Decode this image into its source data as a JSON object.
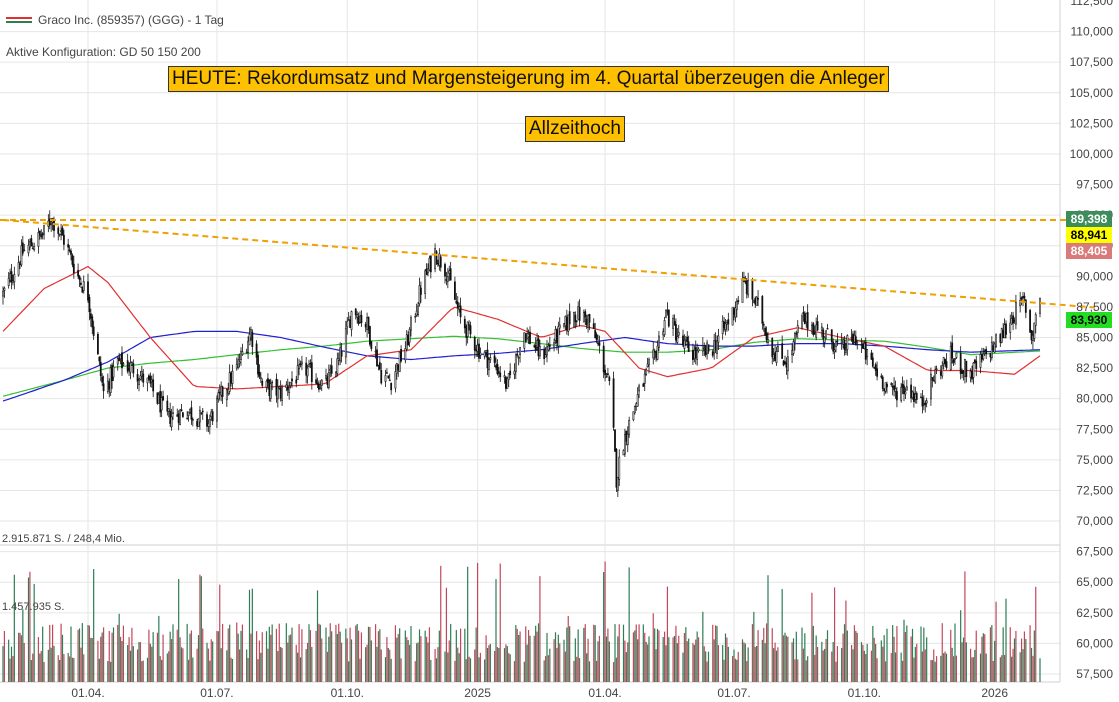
{
  "header": {
    "title": "Graco Inc. (859357) (GGG) - 1 Tag",
    "config": "Aktive Konfiguration: GD 50 150 200"
  },
  "annotations": {
    "headline": "HEUTE: Rekordumsatz und Margensteigerung im 4. Quartal überzeugen die Anleger",
    "ath": "Allzeithoch"
  },
  "volume_panel": {
    "max_label": "2.915.871 S. / 248,4 Mio.",
    "mid_label": "1.457.935 S."
  },
  "badges": {
    "b1": {
      "text": "89,398",
      "bg": "#3d8c5c",
      "fg": "#ffffff"
    },
    "b2": {
      "text": "88,941",
      "bg": "#ffff00",
      "fg": "#000000"
    },
    "b3": {
      "text": "88,405",
      "bg": "#d97b7b",
      "fg": "#ffffff"
    },
    "b4": {
      "text": "83,930",
      "bg": "#22dd22",
      "fg": "#000000"
    }
  },
  "colors": {
    "up": "#2e7d55",
    "down": "#c0485a",
    "ma50": "#e03030",
    "ma150": "#1f1fd0",
    "ma200": "#33c033",
    "trend": "#f0a000",
    "grid": "#e6e6e6"
  },
  "chart_data": {
    "type": "candlestick",
    "price_axis": {
      "ticks": [
        "110,000",
        "107,500",
        "105,000",
        "102,500",
        "100,000",
        "97,500",
        "95,000",
        "92,500",
        "90,000",
        "87,500",
        "85,000",
        "82,500",
        "80,000",
        "77,500",
        "75,000",
        "72,500",
        "70,000",
        "67,500",
        "65,000",
        "62,500",
        "60,000",
        "57,500"
      ],
      "ylim": [
        57.5,
        112.5
      ],
      "top_partial_label": "112,500"
    },
    "x_axis": {
      "ticks": [
        "01.04.",
        "01.07.",
        "01.10.",
        "2025",
        "01.04.",
        "01.07.",
        "01.10.",
        "2026"
      ],
      "start": "2024-02-01",
      "end": "2026-02-02"
    },
    "close_anchors": [
      [
        "2024-02-01",
        88.5
      ],
      [
        "2024-02-15",
        92.0
      ],
      [
        "2024-03-01",
        93.5
      ],
      [
        "2024-03-06",
        94.8
      ],
      [
        "2024-03-15",
        93.0
      ],
      [
        "2024-03-25",
        90.0
      ],
      [
        "2024-04-01",
        88.5
      ],
      [
        "2024-04-05",
        85.5
      ],
      [
        "2024-04-12",
        80.5
      ],
      [
        "2024-04-22",
        83.0
      ],
      [
        "2024-05-03",
        82.5
      ],
      [
        "2024-05-15",
        81.0
      ],
      [
        "2024-05-27",
        78.5
      ],
      [
        "2024-06-10",
        79.0
      ],
      [
        "2024-06-25",
        78.0
      ],
      [
        "2024-07-05",
        80.5
      ],
      [
        "2024-07-15",
        82.5
      ],
      [
        "2024-07-25",
        85.5
      ],
      [
        "2024-08-02",
        81.0
      ],
      [
        "2024-08-15",
        80.5
      ],
      [
        "2024-09-01",
        82.5
      ],
      [
        "2024-09-15",
        81.0
      ],
      [
        "2024-09-25",
        83.0
      ],
      [
        "2024-10-05",
        87.5
      ],
      [
        "2024-10-15",
        86.0
      ],
      [
        "2024-10-25",
        82.0
      ],
      [
        "2024-11-01",
        81.5
      ],
      [
        "2024-11-12",
        84.5
      ],
      [
        "2024-11-22",
        89.0
      ],
      [
        "2024-12-02",
        92.0
      ],
      [
        "2024-12-10",
        90.5
      ],
      [
        "2024-12-20",
        86.5
      ],
      [
        "2025-01-02",
        84.0
      ],
      [
        "2025-01-15",
        82.5
      ],
      [
        "2025-01-22",
        81.0
      ],
      [
        "2025-02-03",
        85.5
      ],
      [
        "2025-02-15",
        83.5
      ],
      [
        "2025-03-01",
        85.5
      ],
      [
        "2025-03-10",
        87.0
      ],
      [
        "2025-03-20",
        86.5
      ],
      [
        "2025-03-28",
        84.0
      ],
      [
        "2025-04-05",
        80.5
      ],
      [
        "2025-04-09",
        73.5
      ],
      [
        "2025-04-14",
        76.5
      ],
      [
        "2025-04-25",
        80.5
      ],
      [
        "2025-05-06",
        83.5
      ],
      [
        "2025-05-14",
        87.0
      ],
      [
        "2025-05-25",
        84.5
      ],
      [
        "2025-06-05",
        83.5
      ],
      [
        "2025-06-15",
        84.0
      ],
      [
        "2025-06-28",
        86.5
      ],
      [
        "2025-07-08",
        89.5
      ],
      [
        "2025-07-18",
        87.5
      ],
      [
        "2025-07-28",
        84.0
      ],
      [
        "2025-08-08",
        83.0
      ],
      [
        "2025-08-18",
        86.5
      ],
      [
        "2025-09-01",
        85.5
      ],
      [
        "2025-09-15",
        84.0
      ],
      [
        "2025-09-25",
        85.0
      ],
      [
        "2025-10-05",
        83.0
      ],
      [
        "2025-10-20",
        80.5
      ],
      [
        "2025-11-01",
        81.0
      ],
      [
        "2025-11-10",
        79.5
      ],
      [
        "2025-11-20",
        82.0
      ],
      [
        "2025-12-01",
        83.5
      ],
      [
        "2025-12-15",
        82.0
      ],
      [
        "2026-01-05",
        85.0
      ],
      [
        "2026-01-15",
        87.0
      ],
      [
        "2026-01-22",
        88.0
      ],
      [
        "2026-01-27",
        85.0
      ],
      [
        "2026-02-02",
        88.4
      ]
    ],
    "ma50_anchors": [
      [
        "2024-02-01",
        85.5
      ],
      [
        "2024-03-01",
        89.0
      ],
      [
        "2024-04-01",
        90.8
      ],
      [
        "2024-04-15",
        89.5
      ],
      [
        "2024-05-15",
        85.0
      ],
      [
        "2024-06-15",
        81.0
      ],
      [
        "2024-07-15",
        80.8
      ],
      [
        "2024-08-15",
        81.0
      ],
      [
        "2024-09-15",
        81.2
      ],
      [
        "2024-10-15",
        83.5
      ],
      [
        "2024-11-15",
        84.0
      ],
      [
        "2024-12-15",
        87.5
      ],
      [
        "2025-01-15",
        86.5
      ],
      [
        "2025-02-15",
        85.0
      ],
      [
        "2025-03-15",
        86.0
      ],
      [
        "2025-04-01",
        85.5
      ],
      [
        "2025-04-25",
        82.5
      ],
      [
        "2025-05-15",
        81.8
      ],
      [
        "2025-06-15",
        82.5
      ],
      [
        "2025-07-15",
        85.0
      ],
      [
        "2025-08-15",
        85.8
      ],
      [
        "2025-09-15",
        85.0
      ],
      [
        "2025-10-15",
        84.3
      ],
      [
        "2025-11-15",
        82.3
      ],
      [
        "2025-12-15",
        82.3
      ],
      [
        "2026-01-15",
        82.0
      ],
      [
        "2026-02-02",
        83.5
      ]
    ],
    "ma150_anchors": [
      [
        "2024-02-01",
        79.8
      ],
      [
        "2024-03-15",
        81.5
      ],
      [
        "2024-04-15",
        83.0
      ],
      [
        "2024-05-15",
        85.0
      ],
      [
        "2024-06-15",
        85.5
      ],
      [
        "2024-07-15",
        85.5
      ],
      [
        "2024-08-15",
        85.0
      ],
      [
        "2024-09-15",
        84.2
      ],
      [
        "2024-10-15",
        83.5
      ],
      [
        "2024-11-15",
        83.2
      ],
      [
        "2024-12-15",
        83.5
      ],
      [
        "2025-01-15",
        83.7
      ],
      [
        "2025-02-15",
        84.0
      ],
      [
        "2025-03-15",
        84.5
      ],
      [
        "2025-04-15",
        85.0
      ],
      [
        "2025-05-15",
        84.5
      ],
      [
        "2025-06-15",
        84.3
      ],
      [
        "2025-07-15",
        84.3
      ],
      [
        "2025-08-15",
        84.5
      ],
      [
        "2025-09-15",
        84.5
      ],
      [
        "2025-10-15",
        84.3
      ],
      [
        "2025-11-15",
        84.0
      ],
      [
        "2025-12-15",
        83.8
      ],
      [
        "2026-02-02",
        84.0
      ]
    ],
    "ma200_anchors": [
      [
        "2024-02-01",
        80.2
      ],
      [
        "2024-03-15",
        81.5
      ],
      [
        "2024-04-15",
        82.5
      ],
      [
        "2024-05-15",
        82.9
      ],
      [
        "2024-06-15",
        83.2
      ],
      [
        "2024-07-15",
        83.6
      ],
      [
        "2024-08-15",
        84.0
      ],
      [
        "2024-09-15",
        84.3
      ],
      [
        "2024-10-15",
        84.7
      ],
      [
        "2024-11-15",
        84.9
      ],
      [
        "2024-12-15",
        85.1
      ],
      [
        "2025-01-15",
        84.9
      ],
      [
        "2025-02-15",
        84.5
      ],
      [
        "2025-03-15",
        84.1
      ],
      [
        "2025-04-15",
        83.8
      ],
      [
        "2025-05-15",
        83.8
      ],
      [
        "2025-06-15",
        84.0
      ],
      [
        "2025-07-15",
        84.6
      ],
      [
        "2025-08-15",
        84.9
      ],
      [
        "2025-09-15",
        84.8
      ],
      [
        "2025-10-15",
        84.7
      ],
      [
        "2025-11-15",
        84.2
      ],
      [
        "2025-12-15",
        83.6
      ],
      [
        "2026-02-02",
        83.9
      ]
    ],
    "trendline_descending": {
      "from": [
        "2024-02-01",
        94.6
      ],
      "to": [
        "2026-02-02",
        87.8
      ]
    },
    "ath_level": 94.6,
    "volume_max_shares": 2915871,
    "volume_mid_shares": 1457935
  }
}
